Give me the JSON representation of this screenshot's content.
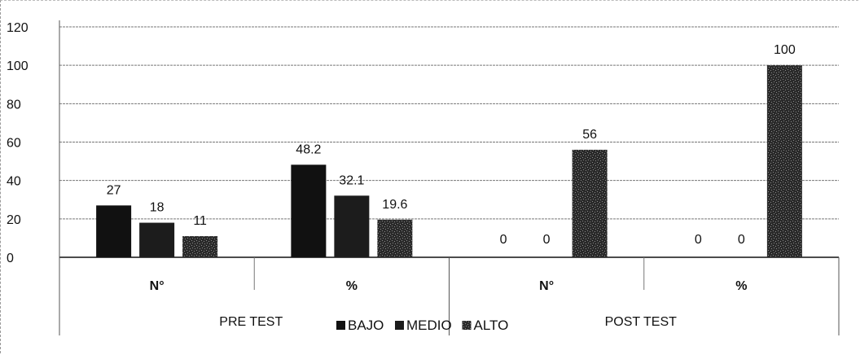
{
  "chart_data": {
    "type": "bar",
    "ylim": [
      0,
      120
    ],
    "yticks": [
      0,
      20,
      40,
      60,
      80,
      100,
      120
    ],
    "grid": true,
    "legend_position": "bottom",
    "groups": [
      {
        "label": "PRE TEST",
        "subcategories": [
          "N°",
          "%"
        ]
      },
      {
        "label": "POST TEST",
        "subcategories": [
          "N°",
          "%"
        ]
      }
    ],
    "categories": [
      "N°",
      "%",
      "N°",
      "%"
    ],
    "series": [
      {
        "name": "BAJO",
        "values": [
          27,
          48.2,
          0,
          0
        ],
        "labels": [
          "27",
          "48.2",
          "0",
          "0"
        ]
      },
      {
        "name": "MEDIO",
        "values": [
          18,
          32.1,
          0,
          0
        ],
        "labels": [
          "18",
          "32.1",
          "0",
          "0"
        ]
      },
      {
        "name": "ALTO",
        "values": [
          11,
          19.6,
          56,
          100
        ],
        "labels": [
          "11",
          "19.6",
          "56",
          "100"
        ]
      }
    ],
    "colors": {
      "BAJO": "#111111",
      "MEDIO": "#1c1c1c",
      "ALTO": "#3a3a3a"
    }
  }
}
